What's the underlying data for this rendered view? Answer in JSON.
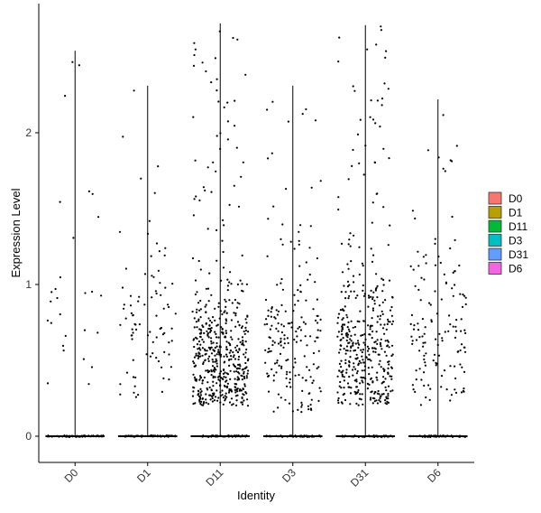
{
  "chart_data": {
    "type": "violin-jitter",
    "xlabel": "Identity",
    "ylabel": "Expression Level",
    "ylim": [
      -0.15,
      2.85
    ],
    "yticks": [
      0,
      1,
      2
    ],
    "grid": false,
    "legend_position": "right",
    "categories": [
      "D0",
      "D1",
      "D11",
      "D3",
      "D31",
      "D6"
    ],
    "legend": [
      {
        "name": "D0",
        "color": "#F8766D"
      },
      {
        "name": "D1",
        "color": "#B79F00"
      },
      {
        "name": "D11",
        "color": "#00BA38"
      },
      {
        "name": "D3",
        "color": "#00BFC4"
      },
      {
        "name": "D31",
        "color": "#619CFF"
      },
      {
        "name": "D6",
        "color": "#F564E3"
      }
    ],
    "max_values": [
      2.54,
      2.31,
      2.72,
      2.31,
      2.71,
      2.22
    ],
    "nonzero_points": [
      {
        "category": "D0",
        "count": 28,
        "low": 0.3,
        "high": 2.54,
        "center": 0.9,
        "spread": 0.6
      },
      {
        "category": "D1",
        "count": 85,
        "low": 0.2,
        "high": 2.31,
        "center": 0.8,
        "spread": 0.55
      },
      {
        "category": "D11",
        "count": 520,
        "low": 0.2,
        "high": 2.72,
        "center": 0.5,
        "spread": 0.4
      },
      {
        "category": "D3",
        "count": 190,
        "low": 0.14,
        "high": 2.31,
        "center": 0.6,
        "spread": 0.45
      },
      {
        "category": "D31",
        "count": 420,
        "low": 0.2,
        "high": 2.71,
        "center": 0.55,
        "spread": 0.45
      },
      {
        "category": "D6",
        "count": 140,
        "low": 0.2,
        "high": 2.22,
        "center": 0.7,
        "spread": 0.5
      }
    ]
  }
}
